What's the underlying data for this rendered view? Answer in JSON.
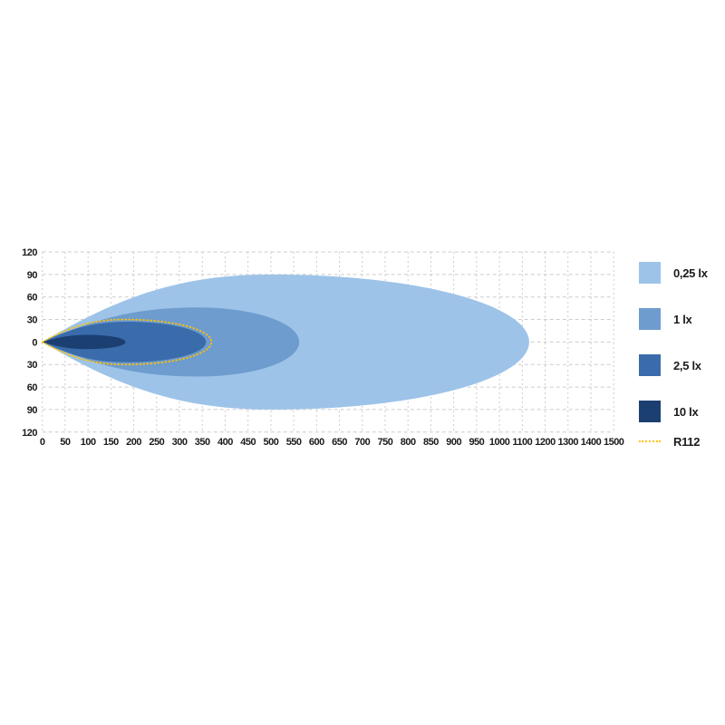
{
  "chart_data": {
    "type": "area",
    "title": "",
    "description": "Nested light-beam illuminance (lux) pattern diagram with R112 reference outline",
    "xlabel": "",
    "ylabel": "",
    "grid": true,
    "legend_position": "right",
    "x_tick_labels": [
      "0",
      "50",
      "100",
      "150",
      "200",
      "250",
      "300",
      "350",
      "400",
      "450",
      "500",
      "550",
      "600",
      "650",
      "700",
      "750",
      "800",
      "850",
      "900",
      "950",
      "1000",
      "1100",
      "1200",
      "1300",
      "1400",
      "1500"
    ],
    "x_axis_scale_note": "step 50 up to 1000, then step 100 per gridline to 1500",
    "y_tick_labels": [
      "120",
      "90",
      "60",
      "30",
      "0",
      "30",
      "60",
      "90",
      "120"
    ],
    "y_values": [
      120,
      90,
      60,
      30,
      0,
      -30,
      -60,
      -90,
      -120
    ],
    "series": [
      {
        "label": "0,25 lx",
        "color": "#9DC3E8",
        "reach": 1130,
        "max_half_width": 90,
        "widest_at": 500
      },
      {
        "label": "1 lx",
        "color": "#6F9CCE",
        "reach": 562,
        "max_half_width": 46,
        "widest_at": 340
      },
      {
        "label": "2,5 lx",
        "color": "#3A6CAC",
        "reach": 358,
        "max_half_width": 27,
        "widest_at": 185
      },
      {
        "label": "10 lx",
        "color": "#1C3F72",
        "reach": 182,
        "max_half_width": 9.5,
        "widest_at": 100
      }
    ],
    "reference_line": {
      "label": "R112",
      "color": "#FFC000",
      "style": "dotted",
      "reach": 370,
      "max_half_width": 30,
      "widest_at": 180
    },
    "grid_color": "#cccccc",
    "text_color": "#1b1b1b"
  }
}
